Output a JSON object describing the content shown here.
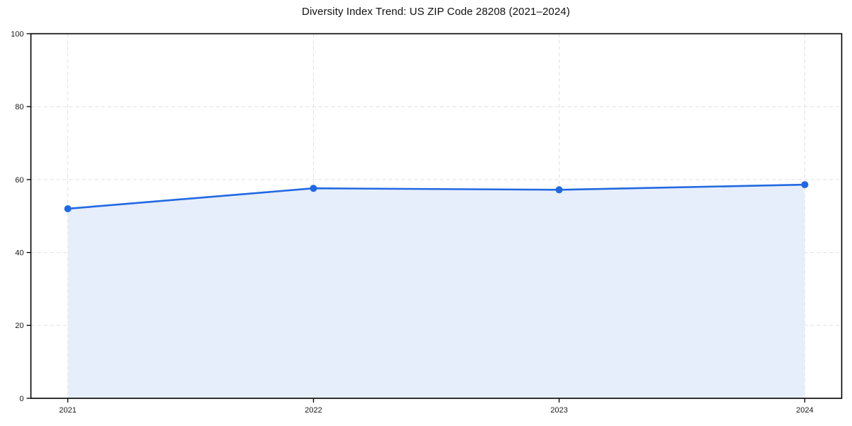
{
  "title": "Diversity Index Trend: US ZIP Code 28208 (2021–2024)",
  "chart_data": {
    "type": "area",
    "title": "Diversity Index Trend: US ZIP Code 28208 (2021–2024)",
    "x": [
      2021,
      2022,
      2023,
      2024
    ],
    "categories": [
      "2021",
      "2022",
      "2023",
      "2024"
    ],
    "series": [
      {
        "name": "Diversity Index",
        "values": [
          52.0,
          57.6,
          57.2,
          58.6
        ]
      }
    ],
    "xlabel": "",
    "ylabel": "",
    "ylim": [
      0,
      100
    ],
    "yticks": [
      0,
      20,
      40,
      60,
      80,
      100
    ],
    "grid": true,
    "grid_style": "dashed",
    "legend": "none",
    "markers": "circle",
    "colors": {
      "line": "#2169e2",
      "marker": "#2169e2",
      "area_fill": "#e7eefb",
      "grid": "#e0e0e0",
      "spine": "#000000",
      "tick_text": "#1a1a1a",
      "background": "#ffffff"
    }
  }
}
